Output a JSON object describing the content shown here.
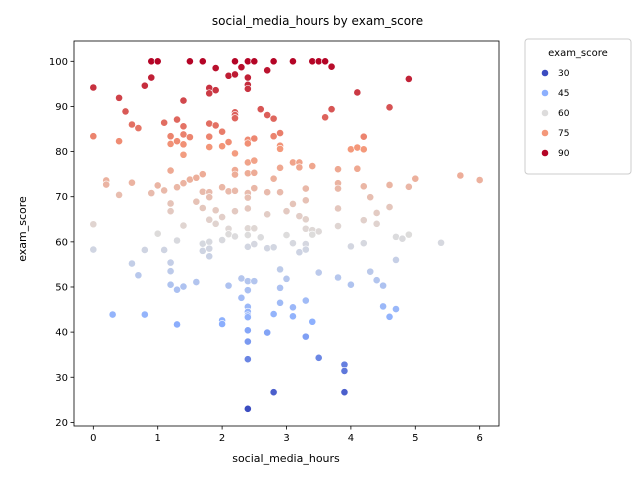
{
  "chart_data": {
    "type": "scatter",
    "title": "social_media_hours by exam_score",
    "xlabel": "social_media_hours",
    "ylabel": "exam_score",
    "xlim": [
      -0.3,
      6.3
    ],
    "ylim": [
      19.2,
      104.5
    ],
    "xticks": [
      0,
      1,
      2,
      3,
      4,
      5,
      6
    ],
    "yticks": [
      20,
      30,
      40,
      50,
      60,
      70,
      80,
      90,
      100
    ],
    "grid": false,
    "hue": "exam_score",
    "legend": {
      "title": "exam_score",
      "placement": "upper right outside",
      "entries": [
        {
          "label": "30",
          "color": "#3b4cc0"
        },
        {
          "label": "45",
          "color": "#8db0fe"
        },
        {
          "label": "60",
          "color": "#dddcdc"
        },
        {
          "label": "75",
          "color": "#f4987a"
        },
        {
          "label": "90",
          "color": "#b40426"
        }
      ]
    },
    "points": [
      [
        0.0,
        94.2
      ],
      [
        0.0,
        83.4
      ],
      [
        0.0,
        63.9
      ],
      [
        0.0,
        58.3
      ],
      [
        0.2,
        73.6
      ],
      [
        0.2,
        72.7
      ],
      [
        0.3,
        43.9
      ],
      [
        0.4,
        91.9
      ],
      [
        0.4,
        82.3
      ],
      [
        0.4,
        70.4
      ],
      [
        0.5,
        88.9
      ],
      [
        0.6,
        86.0
      ],
      [
        0.6,
        73.1
      ],
      [
        0.6,
        55.2
      ],
      [
        0.7,
        85.2
      ],
      [
        0.7,
        52.6
      ],
      [
        0.8,
        94.6
      ],
      [
        0.8,
        58.2
      ],
      [
        0.8,
        43.9
      ],
      [
        0.9,
        100.0
      ],
      [
        0.9,
        96.4
      ],
      [
        0.9,
        70.8
      ],
      [
        1.0,
        100.0
      ],
      [
        1.0,
        72.5
      ],
      [
        1.0,
        61.8
      ],
      [
        1.1,
        86.4
      ],
      [
        1.1,
        71.4
      ],
      [
        1.1,
        58.2
      ],
      [
        1.2,
        83.4
      ],
      [
        1.2,
        81.7
      ],
      [
        1.2,
        75.8
      ],
      [
        1.2,
        68.5
      ],
      [
        1.2,
        66.8
      ],
      [
        1.2,
        55.4
      ],
      [
        1.2,
        53.5
      ],
      [
        1.2,
        50.5
      ],
      [
        1.3,
        87.1
      ],
      [
        1.3,
        82.3
      ],
      [
        1.3,
        72.1
      ],
      [
        1.3,
        60.3
      ],
      [
        1.3,
        49.4
      ],
      [
        1.3,
        41.7
      ],
      [
        1.4,
        91.3
      ],
      [
        1.4,
        85.6
      ],
      [
        1.4,
        83.8
      ],
      [
        1.4,
        81.6
      ],
      [
        1.4,
        79.3
      ],
      [
        1.4,
        73.0
      ],
      [
        1.4,
        63.6
      ],
      [
        1.4,
        50.1
      ],
      [
        1.5,
        100.0
      ],
      [
        1.5,
        83.2
      ],
      [
        1.5,
        73.8
      ],
      [
        1.6,
        74.2
      ],
      [
        1.6,
        68.9
      ],
      [
        1.6,
        51.1
      ],
      [
        1.7,
        100.0
      ],
      [
        1.7,
        75.0
      ],
      [
        1.7,
        71.1
      ],
      [
        1.7,
        67.5
      ],
      [
        1.7,
        59.6
      ],
      [
        1.7,
        58.0
      ],
      [
        1.8,
        94.1
      ],
      [
        1.8,
        92.9
      ],
      [
        1.8,
        86.2
      ],
      [
        1.8,
        83.3
      ],
      [
        1.8,
        81.0
      ],
      [
        1.8,
        71.0
      ],
      [
        1.8,
        69.9
      ],
      [
        1.8,
        64.9
      ],
      [
        1.8,
        60.0
      ],
      [
        1.8,
        58.5
      ],
      [
        1.8,
        56.8
      ],
      [
        1.9,
        98.5
      ],
      [
        1.9,
        93.6
      ],
      [
        1.9,
        85.8
      ],
      [
        1.9,
        67.0
      ],
      [
        1.9,
        64.0
      ],
      [
        2.0,
        84.4
      ],
      [
        2.0,
        81.2
      ],
      [
        2.0,
        72.1
      ],
      [
        2.0,
        65.5
      ],
      [
        2.0,
        60.4
      ],
      [
        2.0,
        42.6
      ],
      [
        2.0,
        41.8
      ],
      [
        2.1,
        96.8
      ],
      [
        2.1,
        82.1
      ],
      [
        2.1,
        71.2
      ],
      [
        2.1,
        62.9
      ],
      [
        2.1,
        61.7
      ],
      [
        2.1,
        50.3
      ],
      [
        2.2,
        100.0
      ],
      [
        2.2,
        97.1
      ],
      [
        2.2,
        88.7
      ],
      [
        2.2,
        88.1
      ],
      [
        2.2,
        87.4
      ],
      [
        2.2,
        79.6
      ],
      [
        2.2,
        75.9
      ],
      [
        2.2,
        74.9
      ],
      [
        2.2,
        71.3
      ],
      [
        2.2,
        66.8
      ],
      [
        2.2,
        61.2
      ],
      [
        2.3,
        98.7
      ],
      [
        2.3,
        51.9
      ],
      [
        2.3,
        47.6
      ],
      [
        2.4,
        100.0
      ],
      [
        2.4,
        96.4
      ],
      [
        2.4,
        94.8
      ],
      [
        2.4,
        93.9
      ],
      [
        2.4,
        82.6
      ],
      [
        2.4,
        81.8
      ],
      [
        2.4,
        77.6
      ],
      [
        2.4,
        75.2
      ],
      [
        2.4,
        70.8
      ],
      [
        2.4,
        69.8
      ],
      [
        2.4,
        67.4
      ],
      [
        2.4,
        63.0
      ],
      [
        2.4,
        61.5
      ],
      [
        2.4,
        58.9
      ],
      [
        2.4,
        51.3
      ],
      [
        2.4,
        49.3
      ],
      [
        2.4,
        45.6
      ],
      [
        2.4,
        44.5
      ],
      [
        2.4,
        43.7
      ],
      [
        2.4,
        43.3
      ],
      [
        2.4,
        40.4
      ],
      [
        2.4,
        37.9
      ],
      [
        2.4,
        34.0
      ],
      [
        2.4,
        23.0
      ],
      [
        2.5,
        100.0
      ],
      [
        2.5,
        82.9
      ],
      [
        2.5,
        78.0
      ],
      [
        2.5,
        75.3
      ],
      [
        2.5,
        71.9
      ],
      [
        2.5,
        63.0
      ],
      [
        2.5,
        59.5
      ],
      [
        2.5,
        51.3
      ],
      [
        2.6,
        89.4
      ],
      [
        2.6,
        61.0
      ],
      [
        2.7,
        98.0
      ],
      [
        2.7,
        88.1
      ],
      [
        2.7,
        71.0
      ],
      [
        2.7,
        66.1
      ],
      [
        2.7,
        58.6
      ],
      [
        2.7,
        39.9
      ],
      [
        2.8,
        100.0
      ],
      [
        2.8,
        87.3
      ],
      [
        2.8,
        83.4
      ],
      [
        2.8,
        74.0
      ],
      [
        2.8,
        58.8
      ],
      [
        2.8,
        44.0
      ],
      [
        2.8,
        26.7
      ],
      [
        2.9,
        84.1
      ],
      [
        2.9,
        81.3
      ],
      [
        2.9,
        80.6
      ],
      [
        2.9,
        76.4
      ],
      [
        2.9,
        71.0
      ],
      [
        2.9,
        53.9
      ],
      [
        2.9,
        49.8
      ],
      [
        2.9,
        46.5
      ],
      [
        3.0,
        66.8
      ],
      [
        3.0,
        61.5
      ],
      [
        3.0,
        51.8
      ],
      [
        3.1,
        100.0
      ],
      [
        3.1,
        77.6
      ],
      [
        3.1,
        68.4
      ],
      [
        3.1,
        59.7
      ],
      [
        3.1,
        45.5
      ],
      [
        3.1,
        43.5
      ],
      [
        3.2,
        77.6
      ],
      [
        3.2,
        76.5
      ],
      [
        3.2,
        65.7
      ],
      [
        3.2,
        57.7
      ],
      [
        3.3,
        71.8
      ],
      [
        3.3,
        69.2
      ],
      [
        3.3,
        65.0
      ],
      [
        3.3,
        62.9
      ],
      [
        3.3,
        59.5
      ],
      [
        3.3,
        58.3
      ],
      [
        3.3,
        47.0
      ],
      [
        3.3,
        39.0
      ],
      [
        3.4,
        100.0
      ],
      [
        3.4,
        76.8
      ],
      [
        3.4,
        62.6
      ],
      [
        3.4,
        61.6
      ],
      [
        3.4,
        42.3
      ],
      [
        3.5,
        100.0
      ],
      [
        3.5,
        62.3
      ],
      [
        3.5,
        53.2
      ],
      [
        3.5,
        34.3
      ],
      [
        3.6,
        100.0
      ],
      [
        3.6,
        87.6
      ],
      [
        3.7,
        98.8
      ],
      [
        3.7,
        89.4
      ],
      [
        3.8,
        76.1
      ],
      [
        3.8,
        73.0
      ],
      [
        3.8,
        71.8
      ],
      [
        3.8,
        67.4
      ],
      [
        3.8,
        63.5
      ],
      [
        3.8,
        52.1
      ],
      [
        3.9,
        32.8
      ],
      [
        3.9,
        31.4
      ],
      [
        3.9,
        26.7
      ],
      [
        4.0,
        80.5
      ],
      [
        4.0,
        59.0
      ],
      [
        4.0,
        50.5
      ],
      [
        4.1,
        93.1
      ],
      [
        4.1,
        80.9
      ],
      [
        4.1,
        76.2
      ],
      [
        4.2,
        83.3
      ],
      [
        4.2,
        80.5
      ],
      [
        4.2,
        72.3
      ],
      [
        4.2,
        64.8
      ],
      [
        4.2,
        59.7
      ],
      [
        4.3,
        69.9
      ],
      [
        4.3,
        53.4
      ],
      [
        4.4,
        66.4
      ],
      [
        4.4,
        64.0
      ],
      [
        4.4,
        51.5
      ],
      [
        4.5,
        50.3
      ],
      [
        4.5,
        45.7
      ],
      [
        4.6,
        89.8
      ],
      [
        4.6,
        72.6
      ],
      [
        4.6,
        67.7
      ],
      [
        4.6,
        43.4
      ],
      [
        4.7,
        61.1
      ],
      [
        4.7,
        56.0
      ],
      [
        4.7,
        45.1
      ],
      [
        4.8,
        60.7
      ],
      [
        4.9,
        96.1
      ],
      [
        4.9,
        72.2
      ],
      [
        4.9,
        61.6
      ],
      [
        5.0,
        74.0
      ],
      [
        5.4,
        59.8
      ],
      [
        5.7,
        74.7
      ],
      [
        6.0,
        73.7
      ]
    ]
  }
}
